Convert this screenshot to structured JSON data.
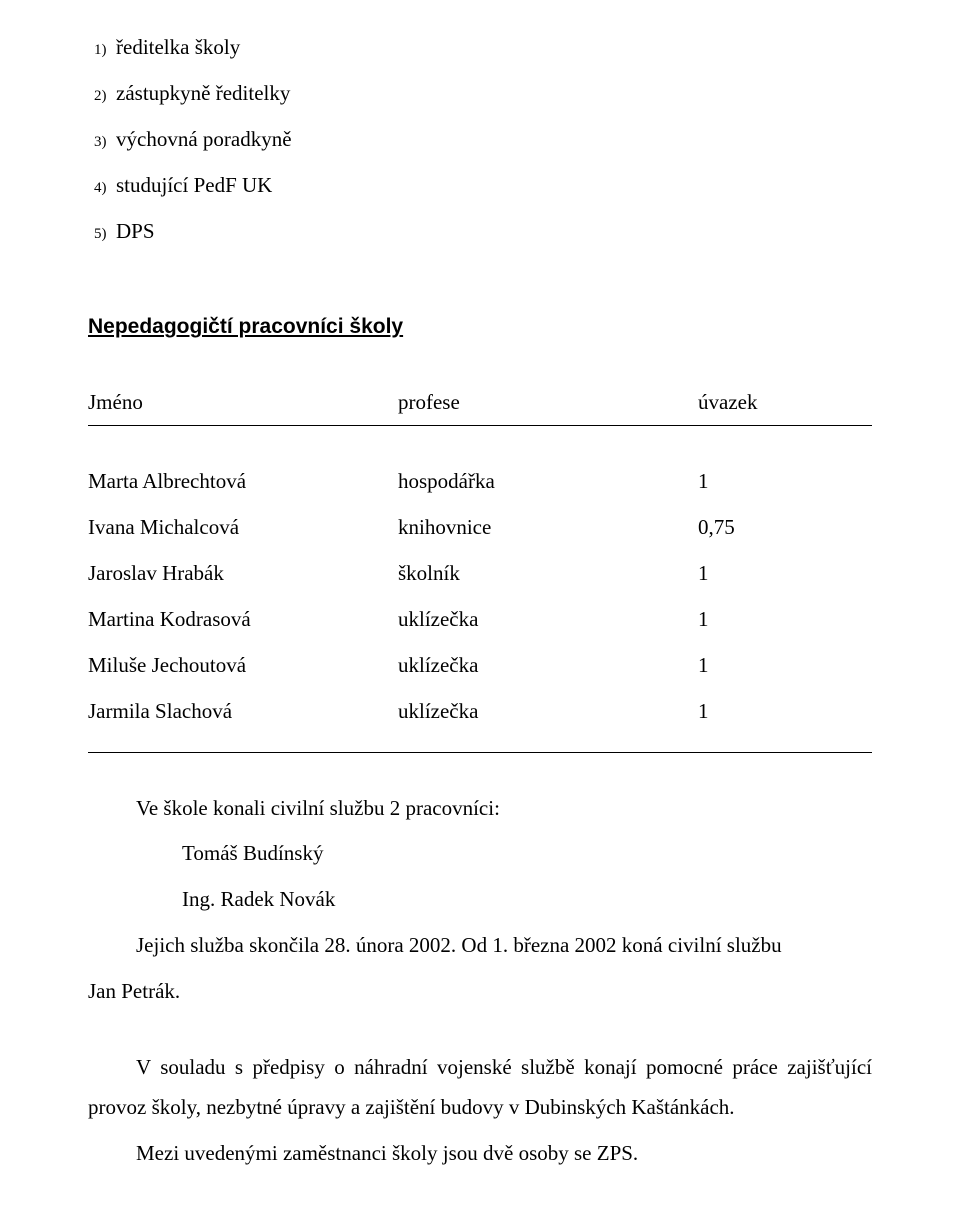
{
  "footnotes": [
    {
      "n": "1)",
      "text": "ředitelka školy"
    },
    {
      "n": "2)",
      "text": "zástupkyně ředitelky"
    },
    {
      "n": "3)",
      "text": "výchovná poradkyně"
    },
    {
      "n": "4)",
      "text": "studující PedF UK"
    },
    {
      "n": "5)",
      "text": "DPS"
    }
  ],
  "sectionHeading": "Nepedagogičtí pracovníci školy",
  "table": {
    "headers": {
      "name": "Jméno",
      "profession": "profese",
      "workload": "úvazek"
    },
    "rows": [
      {
        "name": "Marta Albrechtová",
        "profession": "hospodářka",
        "workload": "1"
      },
      {
        "name": "Ivana Michalcová",
        "profession": "knihovnice",
        "workload": "0,75"
      },
      {
        "name": "Jaroslav Hrabák",
        "profession": "školník",
        "workload": "1"
      },
      {
        "name": "Martina Kodrasová",
        "profession": "uklízečka",
        "workload": "1"
      },
      {
        "name": "Miluše Jechoutová",
        "profession": "uklízečka",
        "workload": "1"
      },
      {
        "name": "Jarmila Slachová",
        "profession": "uklízečka",
        "workload": "1"
      }
    ]
  },
  "civil": {
    "intro": "Ve škole konali civilní službu 2 pracovníci:",
    "workers": [
      "Tomáš Budínský",
      "Ing. Radek Novák"
    ],
    "line1": "Jejich služba skončila 28. února 2002. Od 1. března 2002 koná civilní službu",
    "line2": "Jan Petrák."
  },
  "para2": "V souladu s předpisy o náhradní vojenské službě konají pomocné práce zajišťující provoz školy, nezbytné úpravy a zajištění budovy v Dubinských Kaštánkách.",
  "para3": "Mezi uvedenými zaměstnanci školy jsou dvě osoby se ZPS."
}
